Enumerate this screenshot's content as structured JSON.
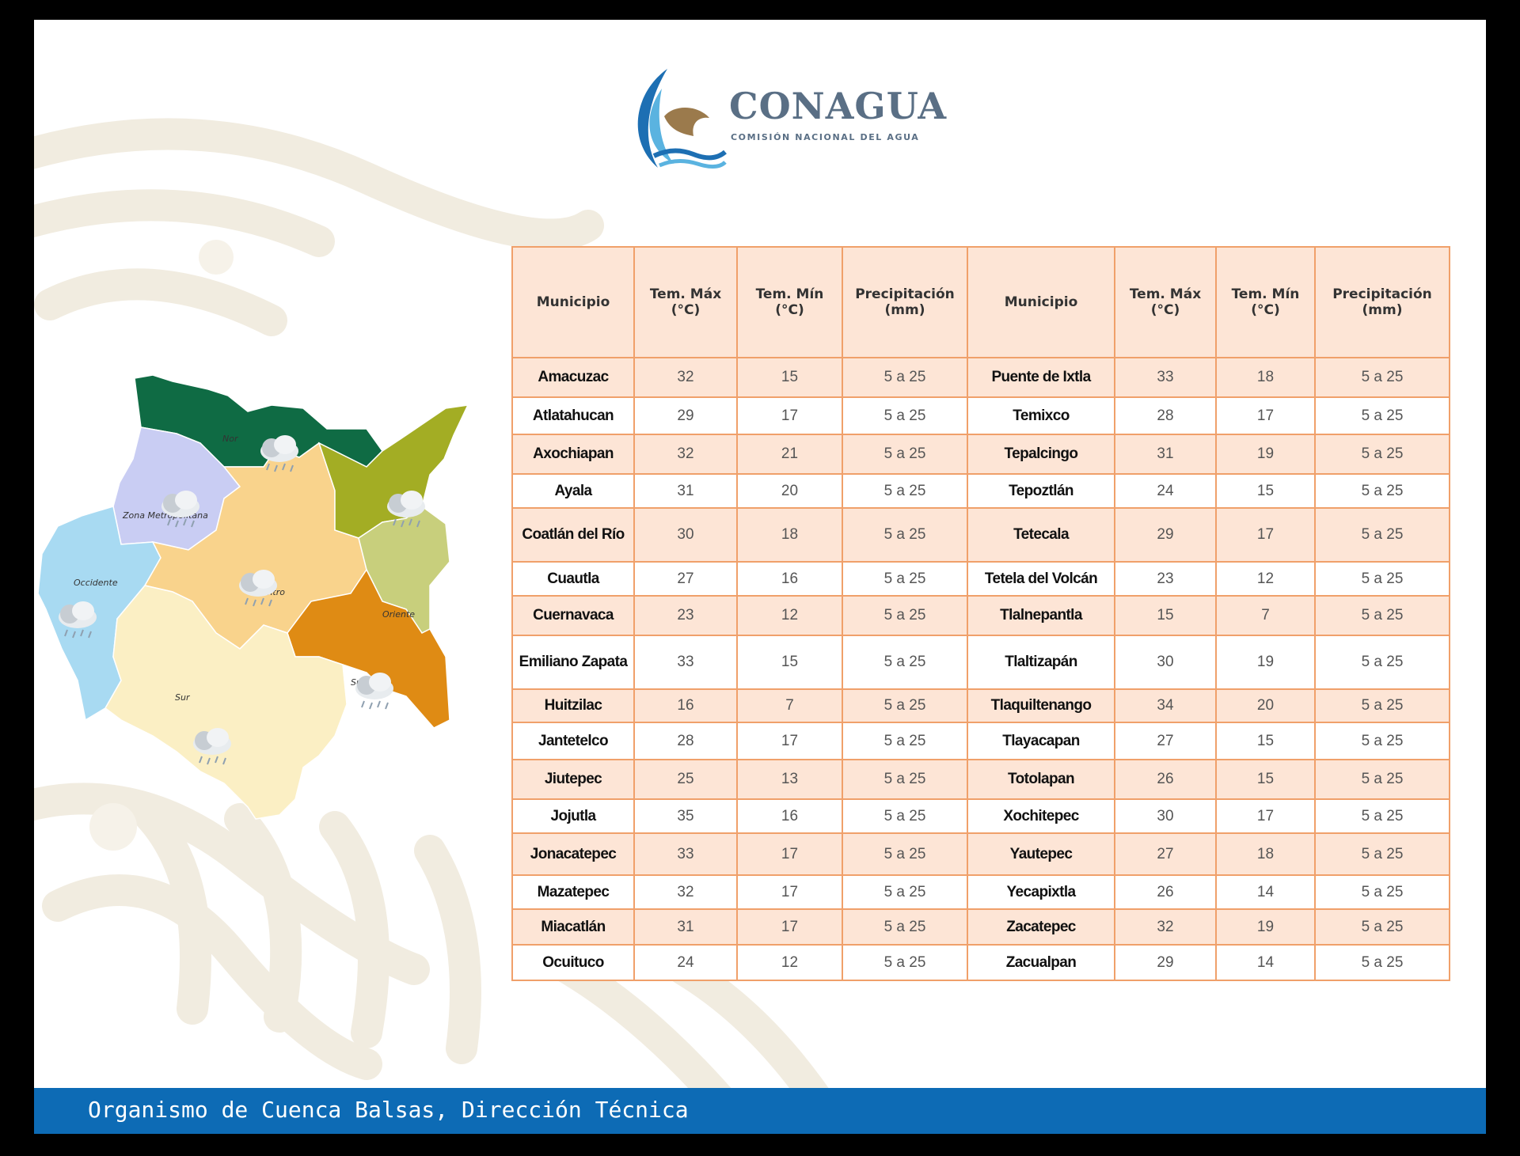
{
  "logo": {
    "name": "CONAGUA",
    "tagline": "COMISIÓN NACIONAL DEL AGUA"
  },
  "map": {
    "regions": [
      {
        "label": "Norte",
        "color": "#0f6b44",
        "weather": "rain-cloud-icon"
      },
      {
        "label": "Zona Metropolitana",
        "color": "#c9cdf3",
        "weather": "rain-cloud-icon"
      },
      {
        "label": "Occidente",
        "color": "#a8daf2",
        "weather": "rain-cloud-icon"
      },
      {
        "label": "Centro",
        "color": "#f9d38c",
        "weather": "rain-cloud-icon"
      },
      {
        "label": "Oriente",
        "color": "#c8cf7c",
        "weather": "rain-cloud-icon"
      },
      {
        "label": "Sureste",
        "color": "#df8b14",
        "weather": "rain-cloud-icon"
      },
      {
        "label": "Sur",
        "color": "#fbefc4",
        "weather": "rain-cloud-icon"
      },
      {
        "label": "",
        "color": "#a3ad24",
        "weather": "rain-cloud-icon"
      }
    ],
    "visible_labels": {
      "norte": "Nor",
      "metropolitana": "Zona Metropolitana",
      "occidente": "Occidente",
      "centro": "Centro",
      "oriente": "Oriente",
      "sureste": "Sureste",
      "sur": "Sur"
    }
  },
  "table": {
    "headers": {
      "municipio": "Municipio",
      "tmax": "Tem. Máx (°C)",
      "tmin": "Tem. Mín (°C)",
      "precip": "Precipitación (mm)"
    },
    "rows": [
      [
        "Amacuzac",
        "32",
        "15",
        "5 a 25",
        "Puente de Ixtla",
        "33",
        "18",
        "5 a 25"
      ],
      [
        "Atlatahucan",
        "29",
        "17",
        "5 a 25",
        "Temixco",
        "28",
        "17",
        "5 a 25"
      ],
      [
        "Axochiapan",
        "32",
        "21",
        "5 a 25",
        "Tepalcingo",
        "31",
        "19",
        "5 a 25"
      ],
      [
        "Ayala",
        "31",
        "20",
        "5 a 25",
        "Tepoztlán",
        "24",
        "15",
        "5 a 25"
      ],
      [
        "Coatlán del Río",
        "30",
        "18",
        "5 a 25",
        "Tetecala",
        "29",
        "17",
        "5 a 25"
      ],
      [
        "Cuautla",
        "27",
        "16",
        "5 a 25",
        "Tetela del Volcán",
        "23",
        "12",
        "5 a 25"
      ],
      [
        "Cuernavaca",
        "23",
        "12",
        "5 a 25",
        "Tlalnepantla",
        "15",
        "7",
        "5 a 25"
      ],
      [
        "Emiliano Zapata",
        "33",
        "15",
        "5 a 25",
        "Tlaltizapán",
        "30",
        "19",
        "5 a 25"
      ],
      [
        "Huitzilac",
        "16",
        "7",
        "5 a 25",
        "Tlaquiltenango",
        "34",
        "20",
        "5 a 25"
      ],
      [
        "Jantetelco",
        "28",
        "17",
        "5 a 25",
        "Tlayacapan",
        "27",
        "15",
        "5 a 25"
      ],
      [
        "Jiutepec",
        "25",
        "13",
        "5 a 25",
        "Totolapan",
        "26",
        "15",
        "5 a 25"
      ],
      [
        "Jojutla",
        "35",
        "16",
        "5 a 25",
        "Xochitepec",
        "30",
        "17",
        "5 a 25"
      ],
      [
        "Jonacatepec",
        "33",
        "17",
        "5 a 25",
        "Yautepec",
        "27",
        "18",
        "5 a 25"
      ],
      [
        "Mazatepec",
        "32",
        "17",
        "5 a 25",
        "Yecapixtla",
        "26",
        "14",
        "5 a 25"
      ],
      [
        "Miacatlán",
        "31",
        "17",
        "5 a 25",
        "Zacatepec",
        "32",
        "19",
        "5 a 25"
      ],
      [
        "Ocuituco",
        "24",
        "12",
        "5 a 25",
        "Zacualpan",
        "29",
        "14",
        "5 a 25"
      ]
    ]
  },
  "footer": {
    "text": "Organismo de Cuenca Balsas, Dirección Técnica",
    "color": "#0d6bb5"
  }
}
